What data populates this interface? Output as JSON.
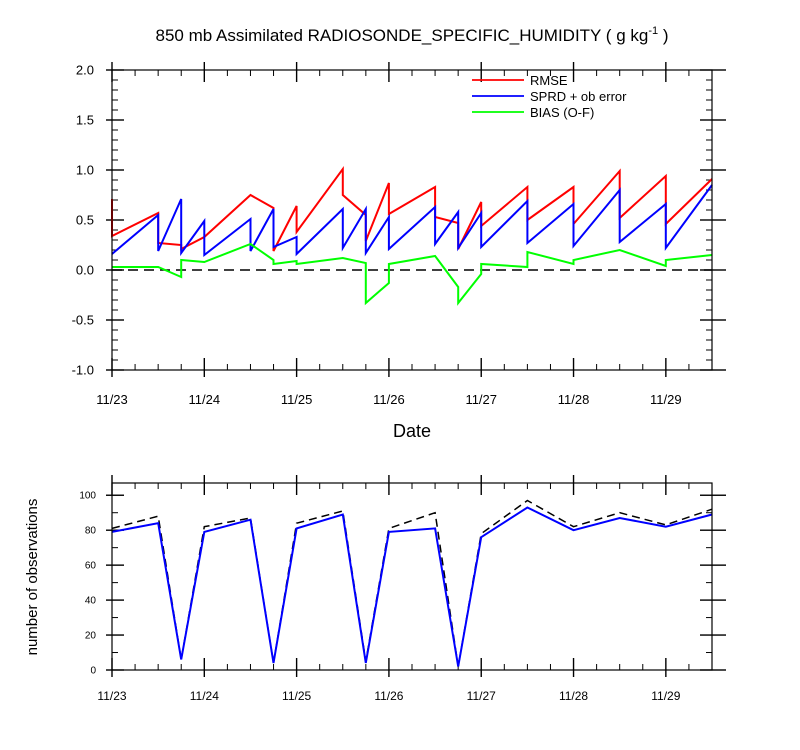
{
  "colors": {
    "rmse": "#ff0000",
    "sprd": "#0000ff",
    "bias": "#00ff00",
    "obs_used": "#0000ff",
    "obs_possible": "#000000",
    "zero_line": "#000000"
  },
  "chart_data": [
    {
      "type": "line",
      "title_main": "850 mb Assimilated RADIOSONDE_SPECIFIC_HUMIDITY ( g kg",
      "title_exp": "-1",
      "title_close": " )",
      "xlabel": "Date",
      "ylabel": "",
      "xlim": [
        0,
        6.5
      ],
      "ylim": [
        -1.0,
        2.0
      ],
      "x_tick_labels": [
        {
          "x": 0,
          "label": "11/23"
        },
        {
          "x": 1,
          "label": "11/24"
        },
        {
          "x": 2,
          "label": "11/25"
        },
        {
          "x": 3,
          "label": "11/26"
        },
        {
          "x": 4,
          "label": "11/27"
        },
        {
          "x": 5,
          "label": "11/28"
        },
        {
          "x": 6,
          "label": "11/29"
        }
      ],
      "y_tick_labels": [
        {
          "y": -1.0,
          "label": "-1.0"
        },
        {
          "y": -0.5,
          "label": "-0.5"
        },
        {
          "y": 0.0,
          "label": "0.0"
        },
        {
          "y": 0.5,
          "label": "0.5"
        },
        {
          "y": 1.0,
          "label": "1.0"
        },
        {
          "y": 1.5,
          "label": "1.5"
        },
        {
          "y": 2.0,
          "label": "2.0"
        }
      ],
      "zero_line": 0,
      "legend_position": "top-right",
      "series": [
        {
          "name": "RMSE",
          "color": "#ff0000",
          "points": [
            [
              0,
              0.71
            ],
            [
              0,
              0.34
            ],
            [
              0.5,
              0.57
            ],
            [
              0.5,
              0.27
            ],
            [
              0.75,
              0.25
            ],
            [
              0.75,
              0.21
            ],
            [
              1,
              0.33
            ],
            [
              1.5,
              0.75
            ],
            [
              1.75,
              0.62
            ],
            [
              1.75,
              0.19
            ],
            [
              2,
              0.64
            ],
            [
              2,
              0.38
            ],
            [
              2.5,
              1.01
            ],
            [
              2.5,
              0.75
            ],
            [
              2.75,
              0.55
            ],
            [
              2.75,
              0.29
            ],
            [
              3,
              0.87
            ],
            [
              3,
              0.56
            ],
            [
              3.5,
              0.83
            ],
            [
              3.5,
              0.53
            ],
            [
              3.75,
              0.47
            ],
            [
              3.75,
              0.21
            ],
            [
              4,
              0.68
            ],
            [
              4,
              0.44
            ],
            [
              4.5,
              0.83
            ],
            [
              4.5,
              0.5
            ],
            [
              5,
              0.83
            ],
            [
              5,
              0.46
            ],
            [
              5.5,
              0.99
            ],
            [
              5.5,
              0.52
            ],
            [
              6,
              0.94
            ],
            [
              6,
              0.46
            ],
            [
              6.5,
              0.91
            ]
          ]
        },
        {
          "name": "SPRD + ob error",
          "color": "#0000ff",
          "points": [
            [
              0,
              0.16
            ],
            [
              0.5,
              0.55
            ],
            [
              0.5,
              0.19
            ],
            [
              0.75,
              0.71
            ],
            [
              0.75,
              0.17
            ],
            [
              1,
              0.49
            ],
            [
              1,
              0.15
            ],
            [
              1.5,
              0.51
            ],
            [
              1.5,
              0.19
            ],
            [
              1.75,
              0.61
            ],
            [
              1.75,
              0.23
            ],
            [
              2,
              0.33
            ],
            [
              2,
              0.16
            ],
            [
              2.5,
              0.61
            ],
            [
              2.5,
              0.22
            ],
            [
              2.75,
              0.61
            ],
            [
              2.75,
              0.17
            ],
            [
              3,
              0.53
            ],
            [
              3,
              0.21
            ],
            [
              3.5,
              0.63
            ],
            [
              3.5,
              0.26
            ],
            [
              3.75,
              0.58
            ],
            [
              3.75,
              0.22
            ],
            [
              4,
              0.57
            ],
            [
              4,
              0.23
            ],
            [
              4.5,
              0.69
            ],
            [
              4.5,
              0.27
            ],
            [
              5,
              0.66
            ],
            [
              5,
              0.24
            ],
            [
              5.5,
              0.8
            ],
            [
              5.5,
              0.28
            ],
            [
              6,
              0.66
            ],
            [
              6,
              0.22
            ],
            [
              6.5,
              0.85
            ]
          ]
        },
        {
          "name": "BIAS (O-F)",
          "color": "#00ff00",
          "points": [
            [
              0,
              0.03
            ],
            [
              0.5,
              0.03
            ],
            [
              0.75,
              -0.07
            ],
            [
              0.75,
              0.1
            ],
            [
              1,
              0.08
            ],
            [
              1.5,
              0.26
            ],
            [
              1.75,
              0.1
            ],
            [
              1.75,
              0.06
            ],
            [
              2,
              0.09
            ],
            [
              2,
              0.06
            ],
            [
              2.5,
              0.12
            ],
            [
              2.75,
              0.07
            ],
            [
              2.75,
              -0.33
            ],
            [
              3,
              -0.13
            ],
            [
              3,
              0.06
            ],
            [
              3.5,
              0.14
            ],
            [
              3.75,
              -0.17
            ],
            [
              3.75,
              -0.33
            ],
            [
              4,
              -0.04
            ],
            [
              4,
              0.06
            ],
            [
              4.5,
              0.03
            ],
            [
              4.5,
              0.18
            ],
            [
              5,
              0.06
            ],
            [
              5,
              0.1
            ],
            [
              5.5,
              0.2
            ],
            [
              6,
              0.04
            ],
            [
              6,
              0.1
            ],
            [
              6.5,
              0.15
            ]
          ]
        }
      ]
    },
    {
      "type": "line",
      "ylabel": "number of observations",
      "xlim": [
        0,
        6.5
      ],
      "ylim": [
        0,
        107
      ],
      "x_tick_labels": [
        {
          "x": 0,
          "label": "11/23"
        },
        {
          "x": 1,
          "label": "11/24"
        },
        {
          "x": 2,
          "label": "11/25"
        },
        {
          "x": 3,
          "label": "11/26"
        },
        {
          "x": 4,
          "label": "11/27"
        },
        {
          "x": 5,
          "label": "11/28"
        },
        {
          "x": 6,
          "label": "11/29"
        }
      ],
      "y_tick_labels": [
        {
          "y": 0,
          "label": "0"
        },
        {
          "y": 20,
          "label": "20"
        },
        {
          "y": 40,
          "label": "40"
        },
        {
          "y": 60,
          "label": "60"
        },
        {
          "y": 80,
          "label": "80"
        },
        {
          "y": 100,
          "label": "100"
        }
      ],
      "series": [
        {
          "color": "#000000",
          "dash": true,
          "x": [
            0,
            0.5,
            0.75,
            1,
            1.5,
            1.75,
            2,
            2.5,
            2.75,
            3,
            3.5,
            3.75,
            4,
            4.5,
            5,
            5.5,
            6,
            6.5
          ],
          "values": [
            81,
            88,
            6,
            82,
            87,
            4,
            84,
            91,
            5,
            81,
            90,
            2,
            78,
            97,
            82,
            90,
            83,
            92
          ]
        },
        {
          "color": "#0000ff",
          "dash": false,
          "x": [
            0,
            0.5,
            0.75,
            1,
            1.5,
            1.75,
            2,
            2.5,
            2.75,
            3,
            3.5,
            3.75,
            4,
            4.5,
            5,
            5.5,
            6,
            6.5
          ],
          "values": [
            79,
            84,
            6,
            79,
            86,
            4,
            81,
            89,
            4,
            79,
            81,
            2,
            76,
            93,
            80,
            87,
            82,
            89
          ]
        }
      ]
    }
  ]
}
